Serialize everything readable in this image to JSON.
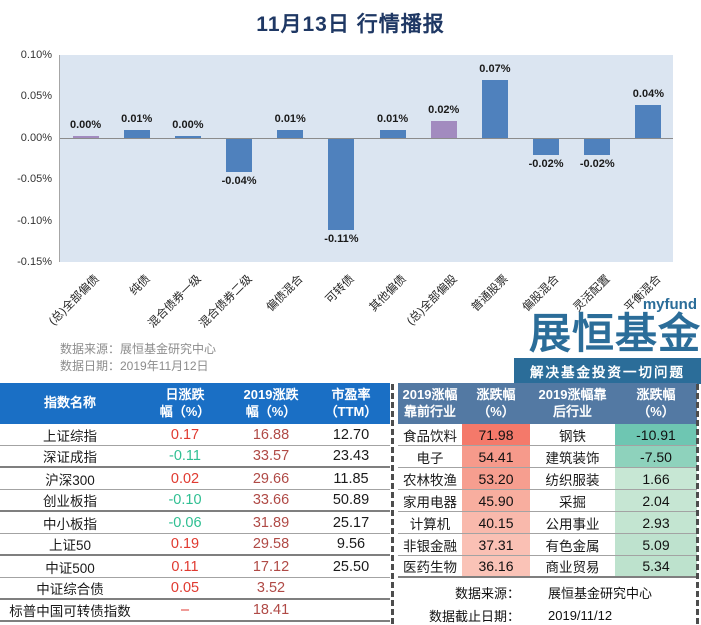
{
  "title": "11月13日 行情播报",
  "chart": {
    "y_ticks": [
      "0.10%",
      "0.05%",
      "0.00%",
      "-0.05%",
      "-0.10%",
      "-0.15%"
    ],
    "source_line1": "数据来源：展恒基金研究中心",
    "source_line2": "数据日期：2019年11月12日",
    "plot_bg": "#dbe5f1",
    "bar_blue": "#4f81bd",
    "bar_purple": "#a28bbf"
  },
  "chart_data": {
    "type": "bar",
    "title": "11月13日 行情播报",
    "categories": [
      "(总)全部偏债",
      "纯债",
      "混合债券一级",
      "混合债券二级",
      "偏债混合",
      "可转债",
      "其他偏债",
      "(总)全部偏股",
      "普通股票",
      "偏股混合",
      "灵活配置",
      "平衡混合"
    ],
    "values": [
      0.0,
      0.01,
      0.0,
      -0.04,
      0.01,
      -0.11,
      0.01,
      0.02,
      0.07,
      -0.02,
      -0.02,
      0.04
    ],
    "value_labels": [
      "0.00%",
      "0.01%",
      "0.00%",
      "-0.04%",
      "0.01%",
      "-0.11%",
      "0.01%",
      "0.02%",
      "0.07%",
      "-0.02%",
      "-0.02%",
      "0.04%"
    ],
    "unit": "%",
    "ylim": [
      -0.15,
      0.1
    ],
    "y_tick_step": 0.05,
    "grid": false,
    "legend": false,
    "bar_colors": [
      "#a28bbf",
      "#4f81bd",
      "#4f81bd",
      "#4f81bd",
      "#4f81bd",
      "#4f81bd",
      "#4f81bd",
      "#a28bbf",
      "#4f81bd",
      "#4f81bd",
      "#4f81bd",
      "#4f81bd"
    ]
  },
  "logo": {
    "brand_small": "myfund",
    "brand_name": "展恒基金",
    "slogan": "解决基金投资一切问题",
    "color": "#2b6d99"
  },
  "index_table": {
    "headers": [
      "指数名称",
      "日涨跌\n幅（%）",
      "2019涨跌\n幅（%）",
      "市盈率\n（TTM）"
    ],
    "up_color": "#e03a30",
    "down_color": "#2fbf92",
    "y2019_color": "#b04a46",
    "rows": [
      {
        "name": "上证综指",
        "day": "0.17",
        "y2019": "16.88",
        "pe": "12.70"
      },
      {
        "name": "深证成指",
        "day": "-0.11",
        "y2019": "33.57",
        "pe": "23.43"
      },
      {
        "name": "沪深300",
        "day": "0.02",
        "y2019": "29.66",
        "pe": "11.85"
      },
      {
        "name": "创业板指",
        "day": "-0.10",
        "y2019": "33.66",
        "pe": "50.89"
      },
      {
        "name": "中小板指",
        "day": "-0.06",
        "y2019": "31.89",
        "pe": "25.17"
      },
      {
        "name": "上证50",
        "day": "0.19",
        "y2019": "29.58",
        "pe": "9.56"
      },
      {
        "name": "中证500",
        "day": "0.11",
        "y2019": "17.12",
        "pe": "25.50"
      },
      {
        "name": "中证综合债",
        "day": "0.05",
        "y2019": "3.52",
        "pe": ""
      },
      {
        "name": "标普中国可转债指数",
        "day": "–",
        "y2019": "18.41",
        "pe": ""
      }
    ]
  },
  "sector_table": {
    "headers": [
      "2019涨幅\n靠前行业",
      "涨跌幅\n（%）",
      "2019涨幅靠\n后行业",
      "涨跌幅\n（%）"
    ],
    "rows": [
      {
        "top": "食品饮料",
        "top_val": "71.98",
        "top_bg": "#f4796a",
        "bot": "钢铁",
        "bot_val": "-10.91",
        "bot_bg": "#6ec6b2"
      },
      {
        "top": "电子",
        "top_val": "54.41",
        "top_bg": "#f69a8b",
        "bot": "建筑装饰",
        "bot_val": "-7.50",
        "bot_bg": "#8ed2bc"
      },
      {
        "top": "农林牧渔",
        "top_val": "53.20",
        "top_bg": "#f69e8f",
        "bot": "纺织服装",
        "bot_val": "1.66",
        "bot_bg": "#c7e7d4"
      },
      {
        "top": "家用电器",
        "top_val": "45.90",
        "top_bg": "#f8ae9f",
        "bot": "采掘",
        "bot_val": "2.04",
        "bot_bg": "#c6e6d3"
      },
      {
        "top": "计算机",
        "top_val": "40.15",
        "top_bg": "#f9b9ac",
        "bot": "公用事业",
        "bot_val": "2.93",
        "bot_bg": "#c3e5d1"
      },
      {
        "top": "非银金融",
        "top_val": "37.31",
        "top_bg": "#fac0b4",
        "bot": "有色金属",
        "bot_val": "5.09",
        "bot_bg": "#bee2ce"
      },
      {
        "top": "医药生物",
        "top_val": "36.16",
        "top_bg": "#fac3b7",
        "bot": "商业贸易",
        "bot_val": "5.34",
        "bot_bg": "#bde2cd"
      }
    ]
  },
  "footer": {
    "source_label": "数据来源：",
    "source_value": "展恒基金研究中心",
    "date_label": "数据截止日期：",
    "date_value": "2019/11/12"
  }
}
